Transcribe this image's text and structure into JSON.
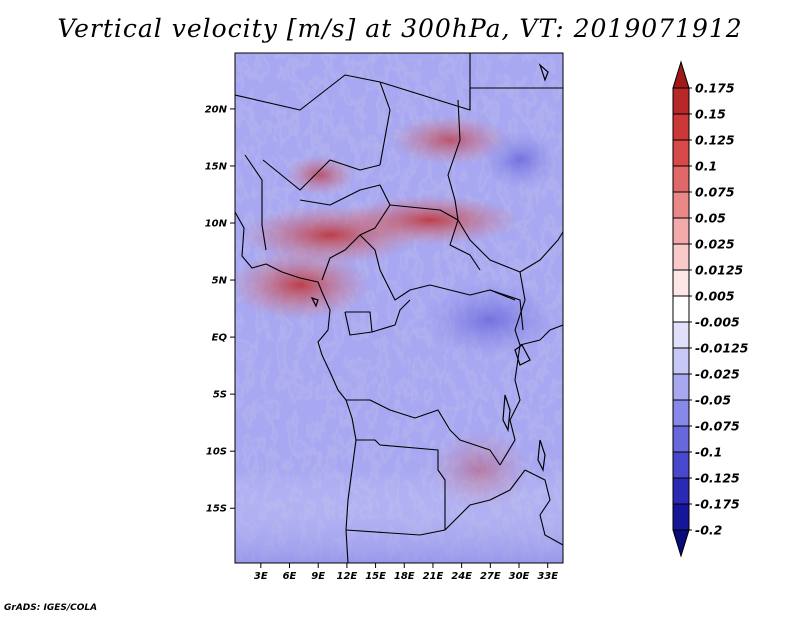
{
  "title": "Vertical velocity [m/s] at 300hPa, VT: 2019071912",
  "credit": "GrADS: IGES/COLA",
  "chart_data": {
    "type": "heatmap",
    "title": "Vertical velocity [m/s] at 300hPa, VT: 2019071912",
    "xlabel": "",
    "ylabel": "",
    "x_ticks": [
      "3E",
      "6E",
      "9E",
      "12E",
      "15E",
      "18E",
      "21E",
      "24E",
      "27E",
      "30E",
      "33E"
    ],
    "x_tick_values": [
      3,
      6,
      9,
      12,
      15,
      18,
      21,
      24,
      27,
      30,
      33
    ],
    "y_ticks": [
      "20N",
      "15N",
      "10N",
      "5N",
      "EQ",
      "5S",
      "10S",
      "15S"
    ],
    "y_tick_values": [
      20,
      15,
      10,
      5,
      0,
      -5,
      -10,
      -15
    ],
    "xlim": [
      0.3,
      34.6
    ],
    "ylim": [
      -19.8,
      24.9
    ],
    "colorbar": {
      "labels": [
        "0.175",
        "0.15",
        "0.125",
        "0.1",
        "0.075",
        "0.05",
        "0.025",
        "0.0125",
        "0.005",
        "-0.005",
        "-0.0125",
        "-0.025",
        "-0.05",
        "-0.075",
        "-0.1",
        "-0.125",
        "-0.175",
        "-0.2"
      ],
      "colors": [
        "#a01818",
        "#b82828",
        "#cc3838",
        "#d84a4a",
        "#e06868",
        "#ea8888",
        "#f2aaaa",
        "#f8caca",
        "#fce6e6",
        "#ffffff",
        "#e0e0fb",
        "#c8c8f6",
        "#a8a8f0",
        "#8888e8",
        "#6868dc",
        "#4848cc",
        "#2a2ab4",
        "#161698",
        "#0a0a78"
      ],
      "extend": "both"
    },
    "grid": false
  }
}
